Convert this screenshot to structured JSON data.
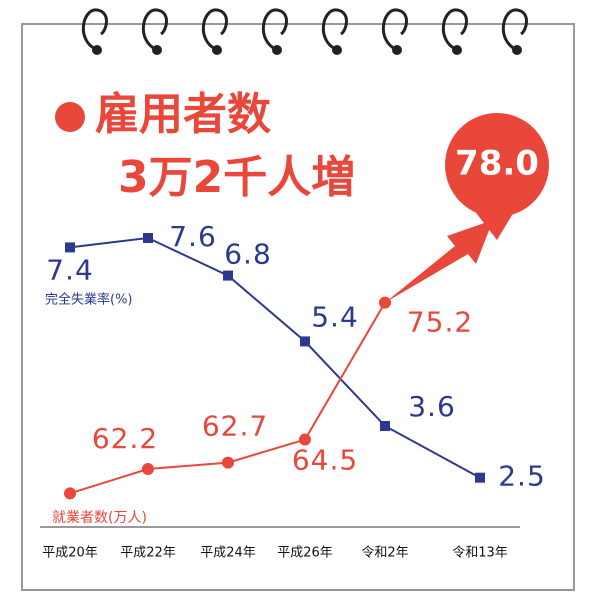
{
  "chart_data": {
    "type": "line",
    "title": "雇用者数",
    "subtitle": "3万2千人増",
    "categories": [
      "平成20年",
      "平成22年",
      "平成24年",
      "平成26年",
      "令和2年",
      "令和13年"
    ],
    "series": [
      {
        "name": "完全失業率(%)",
        "color": "#2b3990",
        "values": [
          7.4,
          7.6,
          6.8,
          5.4,
          3.6,
          2.5
        ]
      },
      {
        "name": "就業者数(万人)",
        "color": "#e8473a",
        "values": [
          60.3,
          62.2,
          62.7,
          64.5,
          75.2,
          78.0
        ],
        "value_labels": [
          null,
          "62.2",
          "62.7",
          "64.5",
          "75.2",
          "78.0"
        ]
      }
    ]
  }
}
